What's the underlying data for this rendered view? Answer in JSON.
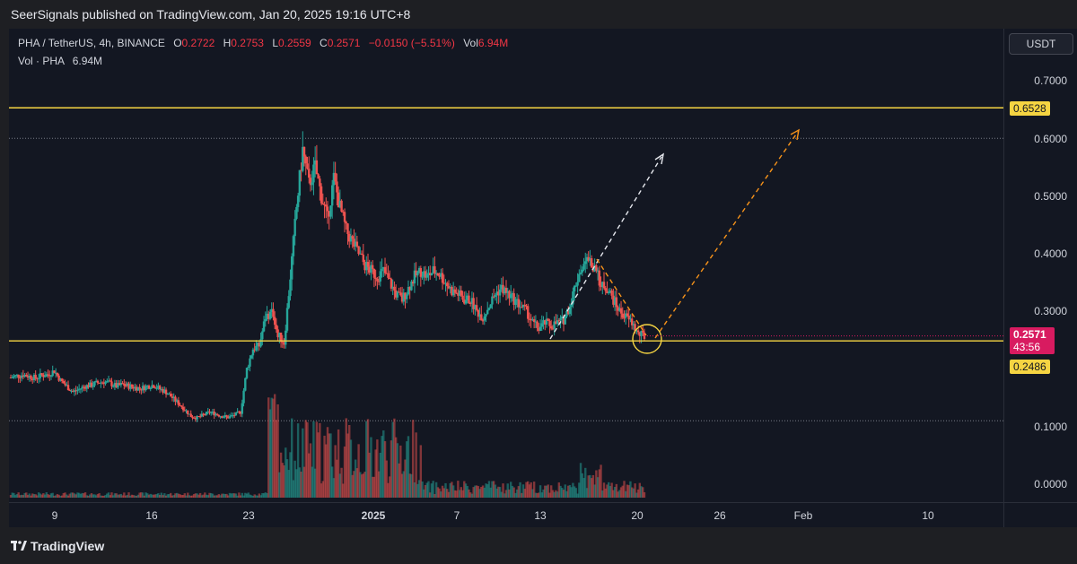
{
  "header": {
    "published": "SeerSignals published on TradingView.com, Jan 20, 2025 19:16 UTC+8"
  },
  "legend": {
    "symbol": "PHA / TetherUS, 4h, BINANCE",
    "o_label": "O",
    "o": "0.2722",
    "h_label": "H",
    "h": "0.2753",
    "l_label": "L",
    "l": "0.2559",
    "c_label": "C",
    "c": "0.2571",
    "change": "−0.0150 (−5.51%)",
    "vol_label": "Vol",
    "vol": "6.94M",
    "vol_series": "Vol · PHA",
    "vol_value": "6.94M"
  },
  "price_axis": {
    "unit": "USDT",
    "ticks": [
      "0.7000",
      "0.6000",
      "0.5000",
      "0.4000",
      "0.3000",
      "0.1000",
      "0.0000"
    ],
    "levels": {
      "upper": "0.6528",
      "lower": "0.2486"
    },
    "current": {
      "price": "0.2571",
      "countdown": "43:56"
    }
  },
  "time_axis": {
    "ticks": [
      {
        "label": "9",
        "bold": false
      },
      {
        "label": "16",
        "bold": false
      },
      {
        "label": "23",
        "bold": false
      },
      {
        "label": "2025",
        "bold": true
      },
      {
        "label": "7",
        "bold": false
      },
      {
        "label": "13",
        "bold": false
      },
      {
        "label": "20",
        "bold": false
      },
      {
        "label": "26",
        "bold": false
      },
      {
        "label": "Feb",
        "bold": false
      },
      {
        "label": "10",
        "bold": false
      }
    ]
  },
  "footer": {
    "brand": "TradingView"
  },
  "colors": {
    "up": "#26a69a",
    "down": "#ef5350",
    "level": "#f5d442",
    "current": "#d81b60",
    "arrow_white": "#e6e8ee",
    "arrow_orange": "#f7931a"
  },
  "chart_data": {
    "type": "line",
    "symbol": "PHA/USDT",
    "interval": "4h",
    "ylim": [
      0,
      0.72
    ],
    "horizontal_levels": [
      0.6528,
      0.2486
    ],
    "dotted_levels": [
      0.6,
      0.11
    ],
    "series": [
      {
        "values": [
          0.185,
          0.188,
          0.19,
          0.187,
          0.184,
          0.189,
          0.19,
          0.197,
          0.18,
          0.17,
          0.16,
          0.165,
          0.17,
          0.172,
          0.176,
          0.178,
          0.175,
          0.17,
          0.173,
          0.17,
          0.168,
          0.166,
          0.17,
          0.172,
          0.165,
          0.16,
          0.15,
          0.14,
          0.13,
          0.118,
          0.115,
          0.12,
          0.125,
          0.122,
          0.118,
          0.116,
          0.12,
          0.125,
          0.2,
          0.235,
          0.24,
          0.29,
          0.3,
          0.26,
          0.245,
          0.36,
          0.48,
          0.58,
          0.52,
          0.55,
          0.5,
          0.46,
          0.53,
          0.48,
          0.44,
          0.42,
          0.4,
          0.38,
          0.37,
          0.36,
          0.37,
          0.35,
          0.33,
          0.32,
          0.34,
          0.36,
          0.37,
          0.36,
          0.37,
          0.365,
          0.35,
          0.335,
          0.33,
          0.32,
          0.32,
          0.3,
          0.29,
          0.31,
          0.33,
          0.34,
          0.33,
          0.32,
          0.31,
          0.3,
          0.28,
          0.27,
          0.28,
          0.275,
          0.28,
          0.285,
          0.31,
          0.35,
          0.38,
          0.39,
          0.37,
          0.35,
          0.34,
          0.32,
          0.3,
          0.29,
          0.28,
          0.26,
          0.2571
        ]
      }
    ],
    "volume_highlight": "6.94M"
  }
}
